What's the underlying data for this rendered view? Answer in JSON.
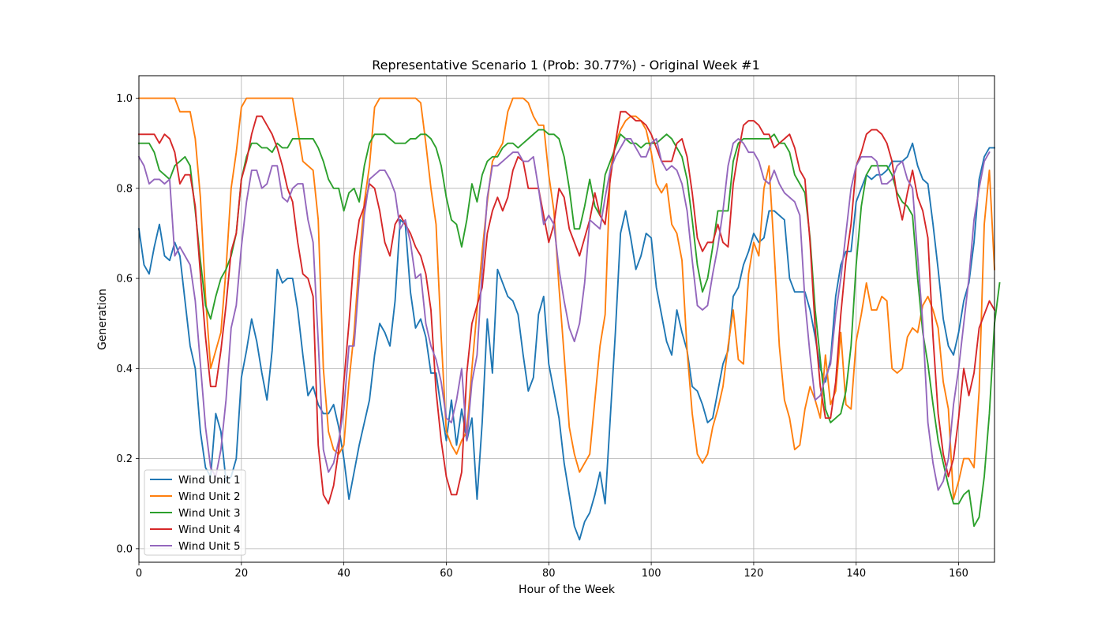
{
  "chart_data": {
    "type": "line",
    "title": "Representative Scenario 1 (Prob: 30.77%) - Original Week #1",
    "xlabel": "Hour of the Week",
    "ylabel": "Generation",
    "xlim": [
      0,
      167
    ],
    "ylim": [
      -0.03,
      1.05
    ],
    "xticks": [
      0,
      20,
      40,
      60,
      80,
      100,
      120,
      140,
      160
    ],
    "yticks": [
      0.0,
      0.2,
      0.4,
      0.6,
      0.8,
      1.0
    ],
    "grid": true,
    "legend_position": "bottom-left",
    "x_start": 0,
    "x_step": 1,
    "series": [
      {
        "name": "Wind Unit 1",
        "color": "#1f77b4",
        "values": [
          0.71,
          0.63,
          0.61,
          0.67,
          0.72,
          0.65,
          0.64,
          0.68,
          0.65,
          0.55,
          0.45,
          0.4,
          0.26,
          0.18,
          0.16,
          0.3,
          0.26,
          0.15,
          0.16,
          0.2,
          0.38,
          0.44,
          0.51,
          0.46,
          0.39,
          0.33,
          0.44,
          0.62,
          0.59,
          0.6,
          0.6,
          0.53,
          0.43,
          0.34,
          0.36,
          0.32,
          0.3,
          0.3,
          0.32,
          0.27,
          0.2,
          0.11,
          0.17,
          0.23,
          0.28,
          0.33,
          0.43,
          0.5,
          0.48,
          0.45,
          0.55,
          0.73,
          0.72,
          0.57,
          0.49,
          0.51,
          0.47,
          0.39,
          0.39,
          0.31,
          0.24,
          0.33,
          0.23,
          0.31,
          0.24,
          0.29,
          0.11,
          0.28,
          0.51,
          0.39,
          0.62,
          0.59,
          0.56,
          0.55,
          0.52,
          0.43,
          0.35,
          0.38,
          0.52,
          0.56,
          0.41,
          0.35,
          0.29,
          0.19,
          0.12,
          0.05,
          0.02,
          0.06,
          0.08,
          0.12,
          0.17,
          0.1,
          0.29,
          0.48,
          0.7,
          0.75,
          0.69,
          0.62,
          0.65,
          0.7,
          0.69,
          0.58,
          0.52,
          0.46,
          0.43,
          0.53,
          0.48,
          0.44,
          0.36,
          0.35,
          0.32,
          0.28,
          0.29,
          0.35,
          0.41,
          0.44,
          0.56,
          0.58,
          0.63,
          0.66,
          0.7,
          0.68,
          0.69,
          0.75,
          0.75,
          0.74,
          0.73,
          0.6,
          0.57,
          0.57,
          0.57,
          0.53,
          0.47,
          0.4,
          0.37,
          0.42,
          0.56,
          0.63,
          0.66,
          0.66,
          0.77,
          0.8,
          0.83,
          0.82,
          0.83,
          0.83,
          0.84,
          0.86,
          0.86,
          0.86,
          0.87,
          0.9,
          0.85,
          0.82,
          0.81,
          0.72,
          0.62,
          0.51,
          0.45,
          0.43,
          0.48,
          0.55,
          0.59,
          0.68,
          0.82,
          0.87,
          0.89,
          0.89
        ]
      },
      {
        "name": "Wind Unit 2",
        "color": "#ff7f0e",
        "values": [
          1.0,
          1.0,
          1.0,
          1.0,
          1.0,
          1.0,
          1.0,
          1.0,
          0.97,
          0.97,
          0.97,
          0.91,
          0.78,
          0.56,
          0.4,
          0.44,
          0.48,
          0.62,
          0.8,
          0.88,
          0.98,
          1.0,
          1.0,
          1.0,
          1.0,
          1.0,
          1.0,
          1.0,
          1.0,
          1.0,
          1.0,
          0.93,
          0.86,
          0.85,
          0.84,
          0.73,
          0.4,
          0.26,
          0.22,
          0.21,
          0.23,
          0.37,
          0.48,
          0.64,
          0.77,
          0.85,
          0.98,
          1.0,
          1.0,
          1.0,
          1.0,
          1.0,
          1.0,
          1.0,
          1.0,
          0.99,
          0.9,
          0.8,
          0.72,
          0.47,
          0.26,
          0.23,
          0.21,
          0.24,
          0.26,
          0.4,
          0.53,
          0.66,
          0.77,
          0.86,
          0.88,
          0.9,
          0.97,
          1.0,
          1.0,
          1.0,
          0.99,
          0.96,
          0.94,
          0.94,
          0.83,
          0.75,
          0.58,
          0.43,
          0.27,
          0.21,
          0.17,
          0.19,
          0.21,
          0.33,
          0.45,
          0.52,
          0.84,
          0.9,
          0.93,
          0.95,
          0.96,
          0.96,
          0.95,
          0.93,
          0.88,
          0.81,
          0.79,
          0.81,
          0.72,
          0.7,
          0.64,
          0.44,
          0.3,
          0.21,
          0.19,
          0.21,
          0.27,
          0.31,
          0.36,
          0.45,
          0.53,
          0.42,
          0.41,
          0.61,
          0.68,
          0.65,
          0.8,
          0.85,
          0.66,
          0.45,
          0.33,
          0.29,
          0.22,
          0.23,
          0.31,
          0.36,
          0.33,
          0.29,
          0.43,
          0.32,
          0.35,
          0.48,
          0.32,
          0.31,
          0.46,
          0.52,
          0.59,
          0.53,
          0.53,
          0.56,
          0.55,
          0.4,
          0.39,
          0.4,
          0.47,
          0.49,
          0.48,
          0.54,
          0.56,
          0.53,
          0.49,
          0.37,
          0.31,
          0.11,
          0.15,
          0.2,
          0.2,
          0.18,
          0.35,
          0.72,
          0.84,
          0.62
        ]
      },
      {
        "name": "Wind Unit 3",
        "color": "#2ca02c",
        "values": [
          0.9,
          0.9,
          0.9,
          0.88,
          0.84,
          0.83,
          0.82,
          0.85,
          0.86,
          0.87,
          0.85,
          0.75,
          0.64,
          0.54,
          0.51,
          0.56,
          0.6,
          0.62,
          0.65,
          0.7,
          0.82,
          0.87,
          0.9,
          0.9,
          0.89,
          0.89,
          0.88,
          0.9,
          0.89,
          0.89,
          0.91,
          0.91,
          0.91,
          0.91,
          0.91,
          0.89,
          0.86,
          0.82,
          0.8,
          0.8,
          0.75,
          0.79,
          0.8,
          0.77,
          0.85,
          0.9,
          0.92,
          0.92,
          0.92,
          0.91,
          0.9,
          0.9,
          0.9,
          0.91,
          0.91,
          0.92,
          0.92,
          0.91,
          0.89,
          0.85,
          0.78,
          0.73,
          0.72,
          0.67,
          0.73,
          0.81,
          0.77,
          0.83,
          0.86,
          0.87,
          0.87,
          0.89,
          0.9,
          0.9,
          0.89,
          0.9,
          0.91,
          0.92,
          0.93,
          0.93,
          0.92,
          0.92,
          0.91,
          0.87,
          0.8,
          0.71,
          0.71,
          0.76,
          0.82,
          0.76,
          0.74,
          0.83,
          0.86,
          0.89,
          0.92,
          0.91,
          0.9,
          0.9,
          0.89,
          0.9,
          0.9,
          0.9,
          0.91,
          0.92,
          0.91,
          0.89,
          0.87,
          0.82,
          0.73,
          0.63,
          0.57,
          0.6,
          0.67,
          0.75,
          0.75,
          0.75,
          0.86,
          0.9,
          0.91,
          0.91,
          0.91,
          0.91,
          0.91,
          0.91,
          0.92,
          0.9,
          0.9,
          0.88,
          0.83,
          0.81,
          0.79,
          0.69,
          0.53,
          0.42,
          0.31,
          0.28,
          0.29,
          0.3,
          0.35,
          0.45,
          0.63,
          0.76,
          0.83,
          0.85,
          0.85,
          0.85,
          0.85,
          0.83,
          0.79,
          0.77,
          0.76,
          0.74,
          0.6,
          0.48,
          0.41,
          0.32,
          0.24,
          0.19,
          0.14,
          0.1,
          0.1,
          0.12,
          0.13,
          0.05,
          0.07,
          0.16,
          0.3,
          0.5,
          0.59
        ]
      },
      {
        "name": "Wind Unit 4",
        "color": "#d62728",
        "values": [
          0.92,
          0.92,
          0.92,
          0.92,
          0.9,
          0.92,
          0.91,
          0.88,
          0.81,
          0.83,
          0.83,
          0.76,
          0.61,
          0.47,
          0.36,
          0.36,
          0.44,
          0.54,
          0.66,
          0.7,
          0.82,
          0.86,
          0.92,
          0.96,
          0.96,
          0.94,
          0.92,
          0.89,
          0.85,
          0.8,
          0.77,
          0.68,
          0.61,
          0.6,
          0.56,
          0.23,
          0.12,
          0.1,
          0.14,
          0.22,
          0.37,
          0.5,
          0.65,
          0.73,
          0.76,
          0.81,
          0.8,
          0.75,
          0.68,
          0.65,
          0.72,
          0.74,
          0.72,
          0.7,
          0.67,
          0.65,
          0.61,
          0.53,
          0.35,
          0.24,
          0.16,
          0.12,
          0.12,
          0.17,
          0.39,
          0.5,
          0.54,
          0.58,
          0.7,
          0.75,
          0.78,
          0.75,
          0.78,
          0.84,
          0.87,
          0.86,
          0.8,
          0.8,
          0.8,
          0.74,
          0.68,
          0.72,
          0.8,
          0.78,
          0.71,
          0.68,
          0.65,
          0.69,
          0.73,
          0.79,
          0.74,
          0.72,
          0.82,
          0.9,
          0.97,
          0.97,
          0.96,
          0.95,
          0.95,
          0.94,
          0.92,
          0.89,
          0.86,
          0.86,
          0.86,
          0.9,
          0.91,
          0.87,
          0.79,
          0.69,
          0.66,
          0.68,
          0.68,
          0.72,
          0.68,
          0.67,
          0.81,
          0.88,
          0.94,
          0.95,
          0.95,
          0.94,
          0.92,
          0.92,
          0.89,
          0.9,
          0.91,
          0.92,
          0.89,
          0.84,
          0.82,
          0.68,
          0.49,
          0.36,
          0.29,
          0.29,
          0.37,
          0.52,
          0.64,
          0.72,
          0.85,
          0.88,
          0.92,
          0.93,
          0.93,
          0.92,
          0.9,
          0.86,
          0.78,
          0.73,
          0.79,
          0.84,
          0.78,
          0.75,
          0.69,
          0.47,
          0.3,
          0.21,
          0.16,
          0.2,
          0.29,
          0.4,
          0.34,
          0.39,
          0.49,
          0.52,
          0.55,
          0.53
        ]
      },
      {
        "name": "Wind Unit 5",
        "color": "#9467bd",
        "values": [
          0.87,
          0.85,
          0.81,
          0.82,
          0.82,
          0.81,
          0.82,
          0.65,
          0.67,
          0.65,
          0.63,
          0.55,
          0.41,
          0.27,
          0.18,
          0.16,
          0.22,
          0.33,
          0.49,
          0.54,
          0.67,
          0.77,
          0.84,
          0.84,
          0.8,
          0.81,
          0.85,
          0.85,
          0.78,
          0.77,
          0.8,
          0.81,
          0.81,
          0.73,
          0.68,
          0.46,
          0.22,
          0.17,
          0.19,
          0.24,
          0.31,
          0.45,
          0.45,
          0.6,
          0.74,
          0.82,
          0.83,
          0.84,
          0.84,
          0.82,
          0.79,
          0.71,
          0.73,
          0.68,
          0.6,
          0.61,
          0.5,
          0.45,
          0.42,
          0.37,
          0.29,
          0.28,
          0.33,
          0.4,
          0.24,
          0.37,
          0.43,
          0.62,
          0.78,
          0.85,
          0.85,
          0.86,
          0.87,
          0.88,
          0.88,
          0.86,
          0.86,
          0.87,
          0.8,
          0.72,
          0.74,
          0.72,
          0.62,
          0.55,
          0.49,
          0.46,
          0.5,
          0.59,
          0.73,
          0.72,
          0.71,
          0.78,
          0.84,
          0.87,
          0.89,
          0.91,
          0.91,
          0.89,
          0.87,
          0.87,
          0.9,
          0.91,
          0.86,
          0.84,
          0.85,
          0.84,
          0.81,
          0.75,
          0.64,
          0.54,
          0.53,
          0.54,
          0.61,
          0.67,
          0.75,
          0.85,
          0.9,
          0.91,
          0.9,
          0.88,
          0.88,
          0.86,
          0.82,
          0.81,
          0.84,
          0.81,
          0.79,
          0.78,
          0.77,
          0.74,
          0.55,
          0.43,
          0.33,
          0.34,
          0.38,
          0.41,
          0.52,
          0.6,
          0.7,
          0.8,
          0.85,
          0.87,
          0.87,
          0.87,
          0.86,
          0.81,
          0.81,
          0.82,
          0.85,
          0.86,
          0.82,
          0.8,
          0.65,
          0.5,
          0.28,
          0.19,
          0.13,
          0.15,
          0.2,
          0.32,
          0.4,
          0.5,
          0.6,
          0.73,
          0.8,
          0.86,
          0.88
        ]
      }
    ]
  }
}
